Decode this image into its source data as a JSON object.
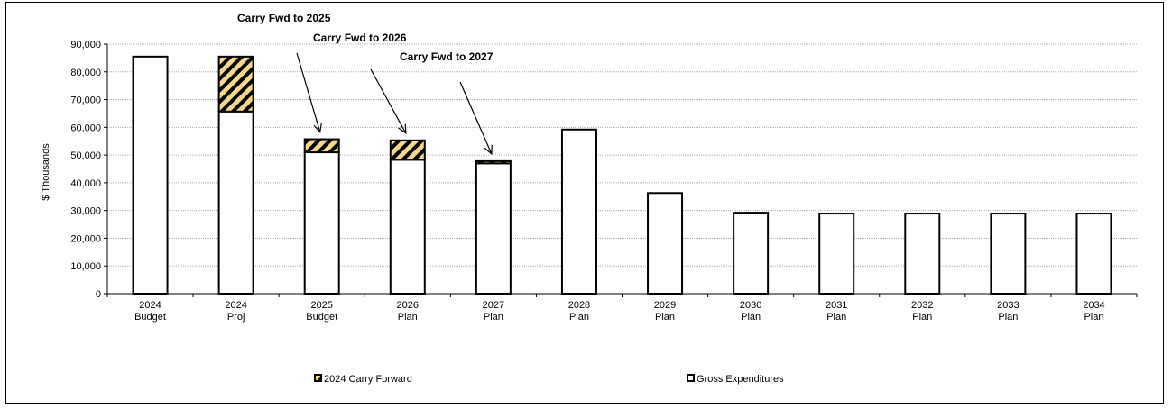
{
  "chart_data": {
    "type": "bar",
    "stacked": true,
    "categories": [
      [
        "2024",
        "Budget"
      ],
      [
        "2024",
        "Proj"
      ],
      [
        "2025",
        "Budget"
      ],
      [
        "2026",
        "Plan"
      ],
      [
        "2027",
        "Plan"
      ],
      [
        "2028",
        "Plan"
      ],
      [
        "2029",
        "Plan"
      ],
      [
        "2030",
        "Plan"
      ],
      [
        "2031",
        "Plan"
      ],
      [
        "2032",
        "Plan"
      ],
      [
        "2033",
        "Plan"
      ],
      [
        "2034",
        "Plan"
      ]
    ],
    "series": [
      {
        "name": "Gross Expenditures",
        "pattern": "plain",
        "values": [
          85500,
          65700,
          51000,
          48300,
          47000,
          59200,
          36300,
          29200,
          28900,
          28900,
          28900,
          28900
        ]
      },
      {
        "name": "2024 Carry Forward",
        "pattern": "hatch",
        "values": [
          0,
          19800,
          4700,
          7000,
          800,
          0,
          0,
          0,
          0,
          0,
          0,
          0
        ]
      }
    ],
    "legend_order": [
      "2024 Carry Forward",
      "Gross Expenditures"
    ],
    "legend_position": "bottom",
    "ylabel": "$ Thousands",
    "xlabel": "",
    "ylim": [
      0,
      90000
    ],
    "yticks": [
      "0",
      "10,000",
      "20,000",
      "30,000",
      "40,000",
      "50,000",
      "60,000",
      "70,000",
      "80,000",
      "90,000"
    ],
    "grid": true,
    "annotations": [
      {
        "text": "Carry Fwd to 2025",
        "target_index": 2
      },
      {
        "text": "Carry Fwd to 2026",
        "target_index": 3
      },
      {
        "text": "Carry Fwd to 2027",
        "target_index": 4
      }
    ],
    "colors": {
      "hatch_fill": "#f5d78e",
      "hatch_stroke": "#000000",
      "bar_fill": "#ffffff",
      "grid": "#b0b0b0"
    }
  }
}
